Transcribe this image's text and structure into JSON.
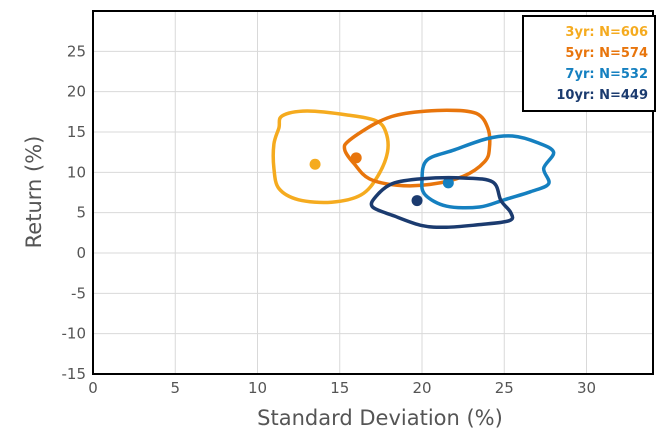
{
  "chart_data": {
    "type": "scatter",
    "xlabel": "Standard Deviation (%)",
    "ylabel": "Return (%)",
    "xlim": [
      0,
      34
    ],
    "ylim": [
      -15,
      30
    ],
    "xticks": [
      0,
      5,
      10,
      15,
      20,
      25,
      30
    ],
    "yticks": [
      -15,
      -10,
      -5,
      0,
      5,
      10,
      15,
      20,
      25
    ],
    "grid": true,
    "legend_position": "top-right",
    "series": [
      {
        "name": "3yr: N=606",
        "color": "#f5ab1f",
        "point": [
          13.5,
          11
        ],
        "contour": [
          [
            11.5,
            17
          ],
          [
            13,
            17.6
          ],
          [
            15.5,
            17.1
          ],
          [
            17.2,
            16.4
          ],
          [
            17.8,
            15
          ],
          [
            17.9,
            12.5
          ],
          [
            17.3,
            9.5
          ],
          [
            16.3,
            7.2
          ],
          [
            14.5,
            6.3
          ],
          [
            12.5,
            6.6
          ],
          [
            11.3,
            8
          ],
          [
            11,
            10.5
          ],
          [
            11,
            13.5
          ],
          [
            11.3,
            15.5
          ],
          [
            11.5,
            17
          ]
        ]
      },
      {
        "name": "5yr: N=574",
        "color": "#e8750c",
        "point": [
          16,
          11.8
        ],
        "contour": [
          [
            15.6,
            14
          ],
          [
            17.4,
            16.3
          ],
          [
            19,
            17.3
          ],
          [
            21.5,
            17.7
          ],
          [
            23.3,
            17.3
          ],
          [
            24,
            15.5
          ],
          [
            24.1,
            13
          ],
          [
            23.8,
            11.3
          ],
          [
            22.5,
            9.5
          ],
          [
            20.5,
            8.5
          ],
          [
            18.5,
            8.4
          ],
          [
            16.8,
            9.2
          ],
          [
            15.9,
            11
          ],
          [
            15.3,
            12.8
          ],
          [
            15.6,
            14
          ]
        ]
      },
      {
        "name": "7yr: N=532",
        "color": "#1580c0",
        "point": [
          21.6,
          8.7
        ],
        "contour": [
          [
            20,
            9
          ],
          [
            20.3,
            11.5
          ],
          [
            22,
            12.8
          ],
          [
            24,
            14.2
          ],
          [
            25.5,
            14.5
          ],
          [
            27,
            13.7
          ],
          [
            28,
            12.5
          ],
          [
            27.4,
            10.5
          ],
          [
            27.7,
            8.6
          ],
          [
            26.6,
            7.6
          ],
          [
            25,
            6.6
          ],
          [
            23.5,
            5.7
          ],
          [
            21.5,
            5.8
          ],
          [
            20.2,
            7.2
          ],
          [
            20,
            9
          ]
        ]
      },
      {
        "name": "10yr: N=449",
        "color": "#1b3b6f",
        "point": [
          19.7,
          6.5
        ],
        "contour": [
          [
            17.2,
            7
          ],
          [
            18.2,
            8.6
          ],
          [
            20,
            9.2
          ],
          [
            22.5,
            9.3
          ],
          [
            24.3,
            8.8
          ],
          [
            24.8,
            6.5
          ],
          [
            25.4,
            5
          ],
          [
            25.3,
            4
          ],
          [
            23.4,
            3.5
          ],
          [
            21.5,
            3.2
          ],
          [
            20,
            3.4
          ],
          [
            18.3,
            4.6
          ],
          [
            17,
            5.7
          ],
          [
            17.2,
            7
          ]
        ]
      }
    ]
  }
}
